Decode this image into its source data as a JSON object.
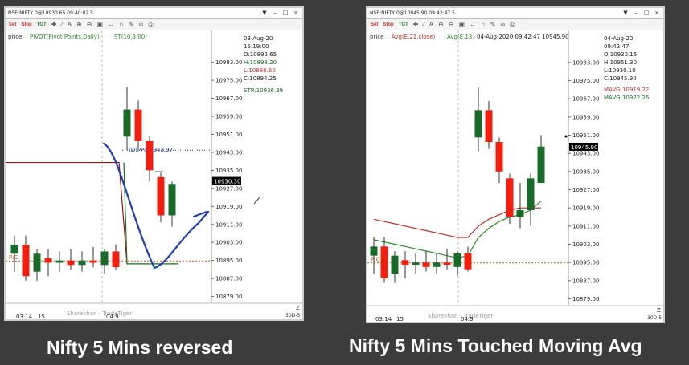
{
  "caption_left": "Nifty 5 Mins reversed",
  "caption_right": "Nifty 5 Mins Touched Moving Avg",
  "colors": {
    "up": "#1a6b2a",
    "down": "#f02010",
    "pivot": "#c55a11",
    "blue_drawing": "#1d3fb0",
    "ma_red": "#b8312b",
    "ma_green": "#2a8a2a",
    "st_green": "#1b6e1b",
    "bg": "#3c3c3c"
  },
  "toolbar_icons": [
    "settings-icon",
    "stop-icon",
    "target-icon",
    "cross-icon",
    "line-tool-icon",
    "text-tool-icon",
    "zoom-in-icon",
    "zoom-out-icon",
    "fit-icon",
    "pan-icon",
    "magnet-icon",
    "pencil-icon",
    "paperclip-icon",
    "print-icon"
  ],
  "chart_data": [
    {
      "type": "candlestick",
      "window_title": "NSE:NIFTY 0@10930.65 09:40:02 5",
      "indicators": [
        "price",
        "PIVOT(Pivot Points,Daily)",
        "ST(10,3.00)"
      ],
      "y_ticks": [
        "10983.00",
        "10975.00",
        "10967.00",
        "10959.00",
        "10951.00",
        "10943.00",
        "10935.00",
        "10927.00",
        "10919.00",
        "10911.00",
        "10903.00",
        "10895.00",
        "10887.00",
        "10879.00"
      ],
      "y_values": [
        10983,
        10975,
        10967,
        10959,
        10951,
        10943,
        10935,
        10927,
        10919,
        10911,
        10903,
        10895,
        10887,
        10879
      ],
      "ylim": [
        10876,
        10990
      ],
      "last_price_label": "10930.30",
      "last_price": 10930.3,
      "x_labels": [
        "03:14",
        "15",
        "04:9"
      ],
      "info_box": {
        "date": "03-Aug-20",
        "time": "15:19:00",
        "open": "O:10892.65",
        "high": "H:10898.20",
        "low": "L:10886.60",
        "close": "C:10894.25",
        "str": "STR:10936.39"
      },
      "pivot_label": "(D)PP:10943.97",
      "pivot_value": 10943.97,
      "bottom_pivot_label": "P:C",
      "bottom_pivot_value": 10894.8,
      "watermark": "Sharekhan - TradeTiger",
      "corner_label": "30D-5",
      "corner_button": "Z",
      "candles": [
        {
          "o": 10898,
          "h": 10906,
          "l": 10890,
          "c": 10902
        },
        {
          "o": 10902,
          "h": 10906,
          "l": 10886,
          "c": 10888
        },
        {
          "o": 10890,
          "h": 10900,
          "l": 10886,
          "c": 10898
        },
        {
          "o": 10896,
          "h": 10900,
          "l": 10888,
          "c": 10894
        },
        {
          "o": 10894,
          "h": 10899,
          "l": 10890,
          "c": 10895
        },
        {
          "o": 10895,
          "h": 10900,
          "l": 10891,
          "c": 10893
        },
        {
          "o": 10893,
          "h": 10899,
          "l": 10890,
          "c": 10895
        },
        {
          "o": 10895,
          "h": 10901,
          "l": 10892,
          "c": 10894
        },
        {
          "o": 10893,
          "h": 10900,
          "l": 10889,
          "c": 10899
        },
        {
          "o": 10899,
          "h": 10902,
          "l": 10891,
          "c": 10892
        },
        {
          "o": 10950,
          "h": 10972,
          "l": 10944,
          "c": 10962
        },
        {
          "o": 10962,
          "h": 10966,
          "l": 10945,
          "c": 10948
        },
        {
          "o": 10948,
          "h": 10950,
          "l": 10930,
          "c": 10935
        },
        {
          "o": 10932,
          "h": 10934,
          "l": 10912,
          "c": 10915
        },
        {
          "o": 10915,
          "h": 10930,
          "l": 10910,
          "c": 10929
        }
      ],
      "supertrend_red_value": 10938.5,
      "supertrend_green_value": 10893.5
    },
    {
      "type": "candlestick",
      "window_title": "NSE:NIFTY 0@10945.90 09:42:47 5",
      "indicators": [
        "price",
        "Avg(E,21,close)",
        "Avg(E,13,"
      ],
      "header_datetime": "04-Aug-2020 09:42:47 10945.90",
      "y_ticks": [
        "10983.00",
        "10975.00",
        "10967.00",
        "10959.00",
        "10951.00",
        "10943.00",
        "10935.00",
        "10927.00",
        "10919.00",
        "10911.00",
        "10903.00",
        "10895.00",
        "10887.00",
        "10879.00"
      ],
      "y_values": [
        10983,
        10975,
        10967,
        10959,
        10951,
        10943,
        10935,
        10927,
        10919,
        10911,
        10903,
        10895,
        10887,
        10879
      ],
      "ylim": [
        10876,
        10990
      ],
      "last_price_label": "10945.90",
      "last_price": 10945.9,
      "x_labels": [
        "03:14",
        "15",
        "04:9"
      ],
      "info_box": {
        "date": "04-Aug-20",
        "time": "09:42:47",
        "open": "O:10930.15",
        "high": "H:10951.30",
        "low": "L:10930.10",
        "close": "C:10945.90",
        "mavg1": "MAVG:10919.22",
        "mavg2": "MAVG:10922.26"
      },
      "bottom_pivot_label": "P:C",
      "bottom_pivot_value": 10894.8,
      "watermark": "Sharekhan - TradeTiger",
      "corner_label": "30D-5",
      "corner_button": "Z",
      "candles": [
        {
          "o": 10898,
          "h": 10906,
          "l": 10890,
          "c": 10902
        },
        {
          "o": 10902,
          "h": 10906,
          "l": 10886,
          "c": 10888
        },
        {
          "o": 10890,
          "h": 10900,
          "l": 10886,
          "c": 10898
        },
        {
          "o": 10896,
          "h": 10900,
          "l": 10888,
          "c": 10894
        },
        {
          "o": 10894,
          "h": 10899,
          "l": 10890,
          "c": 10895
        },
        {
          "o": 10895,
          "h": 10900,
          "l": 10891,
          "c": 10893
        },
        {
          "o": 10893,
          "h": 10899,
          "l": 10890,
          "c": 10895
        },
        {
          "o": 10895,
          "h": 10901,
          "l": 10892,
          "c": 10894
        },
        {
          "o": 10893,
          "h": 10900,
          "l": 10889,
          "c": 10899
        },
        {
          "o": 10899,
          "h": 10902,
          "l": 10891,
          "c": 10892
        },
        {
          "o": 10950,
          "h": 10972,
          "l": 10944,
          "c": 10962
        },
        {
          "o": 10962,
          "h": 10966,
          "l": 10945,
          "c": 10948
        },
        {
          "o": 10948,
          "h": 10950,
          "l": 10930,
          "c": 10935
        },
        {
          "o": 10932,
          "h": 10934,
          "l": 10912,
          "c": 10915
        },
        {
          "o": 10915,
          "h": 10930,
          "l": 10910,
          "c": 10918
        },
        {
          "o": 10918,
          "h": 10934,
          "l": 10911,
          "c": 10932
        },
        {
          "o": 10930,
          "h": 10951,
          "l": 10930,
          "c": 10946
        }
      ],
      "ema_red": [
        10914,
        10913,
        10912,
        10911,
        10910,
        10909,
        10908,
        10907,
        10906,
        10906,
        10911,
        10914,
        10916,
        10918,
        10919,
        10919,
        10919
      ],
      "ema_green": [
        10905,
        10904,
        10903,
        10902,
        10901,
        10900,
        10899,
        10898,
        10897,
        10898,
        10906,
        10910,
        10913,
        10915,
        10916,
        10918,
        10922
      ]
    }
  ]
}
